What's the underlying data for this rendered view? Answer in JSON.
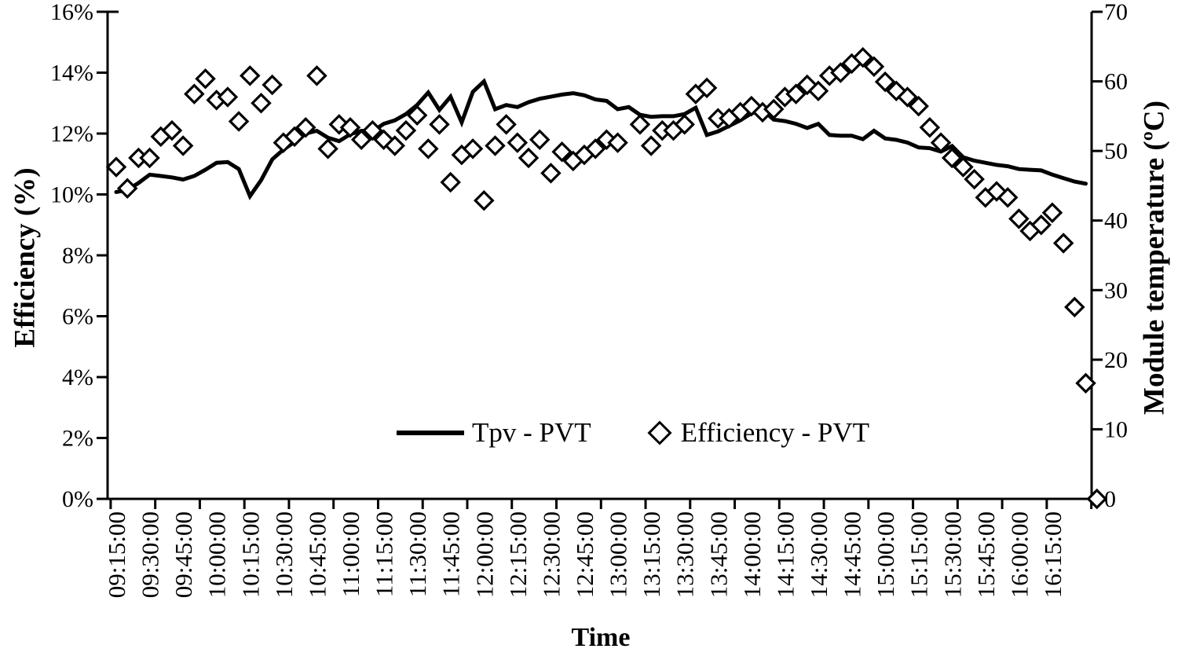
{
  "chart_data": {
    "type": "line",
    "title": "",
    "xlabel": "Time",
    "ylabel_left": "Efficiency (%)",
    "ylabel_right": "Module temperature (ºC)",
    "x_start_time": "09:15:00",
    "x_step_minutes": 5,
    "x_label_every_n_points": 3,
    "x_tick_every_n_points": 4,
    "x_labels": [
      "09:15:00",
      "09:30:00",
      "09:45:00",
      "10:00:00",
      "10:15:00",
      "10:30:00",
      "10:45:00",
      "11:00:00",
      "11:15:00",
      "11:30:00",
      "11:45:00",
      "12:00:00",
      "12:15:00",
      "12:30:00",
      "12:45:00",
      "13:00:00",
      "13:15:00",
      "13:30:00",
      "13:45:00",
      "14:00:00",
      "14:15:00",
      "14:30:00",
      "14:45:00",
      "15:00:00",
      "15:15:00",
      "15:30:00",
      "15:45:00",
      "16:00:00",
      "16:15:00"
    ],
    "left_axis": {
      "min": 0,
      "max": 16,
      "tick_step": 2,
      "tick_labels": [
        "0%",
        "2%",
        "4%",
        "6%",
        "8%",
        "10%",
        "12%",
        "14%",
        "16%"
      ]
    },
    "right_axis": {
      "min": 0,
      "max": 70,
      "tick_step": 10,
      "tick_labels": [
        "0",
        "10",
        "20",
        "30",
        "40",
        "50",
        "60",
        "70"
      ]
    },
    "grid": "off",
    "legend_position": "bottom-inside",
    "series": [
      {
        "name": "Tpv - PVT",
        "type": "line",
        "axis": "right",
        "color": "#000000",
        "values": [
          44.1,
          44.4,
          45.4,
          46.6,
          46.4,
          46.2,
          45.9,
          46.4,
          47.3,
          48.3,
          48.4,
          47.4,
          43.5,
          45.8,
          48.8,
          50.2,
          51.3,
          52.5,
          52.9,
          51.9,
          51.4,
          52.4,
          52.9,
          52.8,
          53.9,
          54.4,
          55.3,
          56.6,
          58.4,
          55.9,
          57.8,
          54.1,
          58.5,
          60.0,
          56.0,
          56.6,
          56.3,
          57.0,
          57.5,
          57.8,
          58.1,
          58.3,
          58.0,
          57.4,
          57.2,
          56.0,
          56.3,
          55.2,
          54.9,
          55.0,
          55.0,
          55.3,
          56.2,
          52.3,
          52.8,
          53.6,
          54.4,
          55.4,
          55.9,
          54.5,
          54.3,
          53.9,
          53.3,
          53.9,
          52.3,
          52.2,
          52.2,
          51.7,
          52.9,
          51.8,
          51.6,
          51.2,
          50.5,
          50.4,
          49.9,
          50.7,
          49.1,
          48.6,
          48.3,
          48.0,
          47.8,
          47.4,
          47.3,
          47.2,
          46.6,
          46.1,
          45.6,
          45.3,
          null
        ]
      },
      {
        "name": "Efficiency - PVT",
        "type": "scatter",
        "marker": "diamond",
        "axis": "left",
        "color": "#000000",
        "values": [
          10.9,
          10.2,
          11.2,
          11.2,
          11.9,
          12.1,
          11.6,
          13.3,
          13.8,
          13.1,
          13.2,
          12.4,
          13.9,
          13.0,
          13.6,
          11.7,
          11.9,
          12.2,
          13.9,
          11.5,
          12.3,
          12.2,
          11.8,
          12.1,
          11.8,
          11.6,
          12.1,
          12.6,
          11.5,
          12.3,
          10.4,
          11.3,
          11.5,
          9.8,
          11.6,
          12.3,
          11.7,
          11.2,
          11.8,
          10.7,
          11.4,
          11.1,
          11.3,
          11.5,
          11.8,
          11.7,
          null,
          12.3,
          11.6,
          12.1,
          12.1,
          12.3,
          13.3,
          13.5,
          12.5,
          12.5,
          12.7,
          12.9,
          12.7,
          12.8,
          13.2,
          13.3,
          13.6,
          13.4,
          13.9,
          14.0,
          14.3,
          14.5,
          14.2,
          13.7,
          13.4,
          13.2,
          12.9,
          12.2,
          11.7,
          11.2,
          10.9,
          10.5,
          9.9,
          10.1,
          9.9,
          9.2,
          8.8,
          9.0,
          9.4,
          8.4,
          6.3,
          3.8,
          0.0
        ]
      }
    ]
  },
  "colors": {
    "foreground": "#000000",
    "background": "#ffffff"
  }
}
